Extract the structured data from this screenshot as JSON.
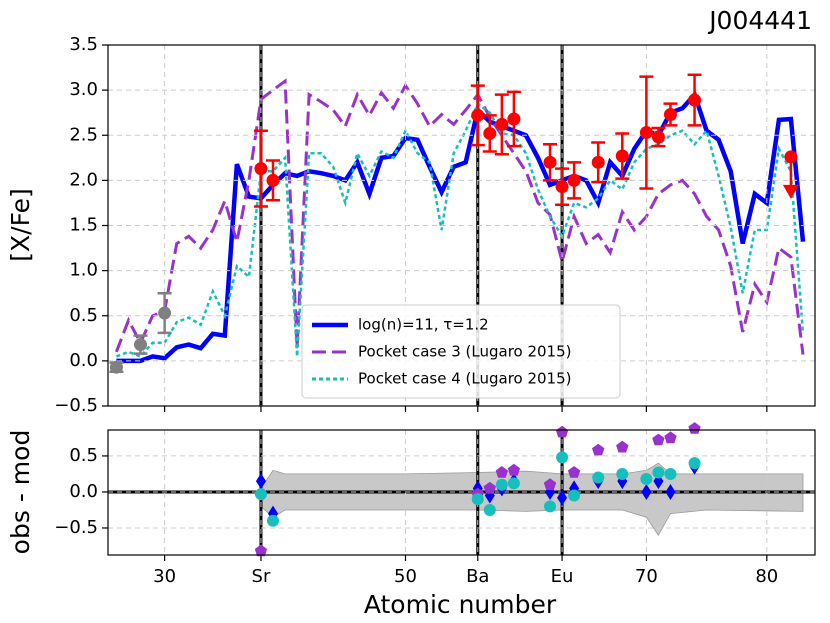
{
  "chart_data": [
    {
      "type": "line",
      "title": "J004441",
      "ylabel": "[X/Fe]",
      "x": [
        26,
        27,
        28,
        29,
        30,
        31,
        32,
        33,
        34,
        35,
        36,
        37,
        38,
        39,
        40,
        41,
        42,
        43,
        44,
        45,
        46,
        47,
        48,
        49,
        50,
        51,
        52,
        53,
        54,
        55,
        56,
        57,
        58,
        59,
        60,
        61,
        62,
        63,
        64,
        65,
        66,
        67,
        68,
        69,
        70,
        71,
        72,
        73,
        74,
        75,
        76,
        77,
        78,
        79,
        80,
        81,
        82,
        83
      ],
      "series": [
        {
          "name": "log(n)=11, τ=1.2",
          "color": "#0000ff",
          "linestyle": "solid",
          "values": [
            0.0,
            0.0,
            0.0,
            0.05,
            0.03,
            0.15,
            0.18,
            0.14,
            0.3,
            0.28,
            2.18,
            1.82,
            1.8,
            1.95,
            2.08,
            2.05,
            2.1,
            2.08,
            2.05,
            2.0,
            2.2,
            1.85,
            2.25,
            2.27,
            2.47,
            2.45,
            2.15,
            1.87,
            2.15,
            2.2,
            2.78,
            2.65,
            2.6,
            2.55,
            2.5,
            2.25,
            1.95,
            2.0,
            2.05,
            2.0,
            1.75,
            2.2,
            2.05,
            2.35,
            2.55,
            2.5,
            2.75,
            2.8,
            2.95,
            2.55,
            2.45,
            2.1,
            1.3,
            1.85,
            1.75,
            2.67,
            2.68,
            1.32
          ]
        },
        {
          "name": "Pocket case 3 (Lugaro 2015)",
          "color": "#9932cc",
          "linestyle": "dashed",
          "values": [
            0.1,
            0.45,
            0.2,
            0.5,
            0.55,
            1.3,
            1.38,
            1.25,
            1.45,
            1.77,
            1.32,
            2.0,
            2.9,
            3.0,
            3.1,
            0.15,
            2.95,
            2.87,
            2.78,
            2.6,
            2.95,
            2.72,
            2.97,
            2.8,
            3.05,
            2.85,
            2.6,
            2.73,
            2.62,
            2.78,
            2.95,
            2.7,
            2.5,
            2.3,
            2.1,
            1.75,
            1.62,
            1.1,
            1.6,
            1.3,
            1.4,
            1.2,
            1.65,
            1.45,
            1.6,
            1.85,
            1.95,
            2.0,
            1.85,
            1.6,
            1.45,
            1.05,
            0.32,
            0.85,
            0.65,
            1.25,
            1.15,
            0.07
          ]
        },
        {
          "name": "Pocket case 4 (Lugaro 2015)",
          "color": "#17bebe",
          "linestyle": "dotted",
          "values": [
            0.05,
            0.1,
            0.05,
            0.2,
            0.2,
            0.43,
            0.48,
            0.4,
            0.77,
            0.5,
            1.05,
            0.93,
            2.1,
            2.1,
            2.25,
            0.05,
            2.3,
            2.3,
            2.15,
            1.75,
            2.3,
            2.05,
            2.32,
            2.25,
            2.55,
            2.3,
            2.2,
            1.45,
            2.3,
            2.55,
            2.85,
            2.75,
            2.52,
            2.5,
            2.3,
            1.9,
            1.6,
            1.38,
            1.75,
            1.7,
            1.8,
            2.0,
            1.9,
            2.2,
            2.35,
            2.4,
            2.5,
            2.55,
            2.4,
            2.55,
            2.05,
            1.48,
            0.75,
            1.45,
            1.45,
            2.35,
            2.1,
            0.3
          ]
        }
      ],
      "observations": [
        {
          "color": "#ff0000",
          "x": [
            38,
            39,
            56,
            57,
            58,
            59,
            62,
            63,
            64,
            66,
            68,
            70,
            71,
            72,
            74
          ],
          "values": [
            2.13,
            2.0,
            2.72,
            2.52,
            2.62,
            2.68,
            2.2,
            1.93,
            2.0,
            2.2,
            2.27,
            2.53,
            2.48,
            2.73,
            2.89
          ],
          "errors": [
            0.42,
            0.22,
            0.33,
            0.2,
            0.33,
            0.3,
            0.2,
            0.2,
            0.2,
            0.22,
            0.25,
            0.62,
            0.1,
            0.12,
            0.28
          ]
        },
        {
          "color": "#808080",
          "x": [
            26,
            28,
            30
          ],
          "values": [
            -0.07,
            0.18,
            0.53
          ],
          "errors": [
            0.05,
            0.1,
            0.22
          ]
        }
      ],
      "upper_limits": {
        "color": "#ff0000",
        "x": [
          82
        ],
        "values": [
          2.26
        ]
      },
      "vlines": [
        38,
        56,
        63
      ],
      "xlim": [
        25.3,
        84
      ],
      "ylim": [
        -0.5,
        3.5
      ],
      "yticks": [
        {
          "value": -0.5,
          "label": "−0.5"
        },
        {
          "value": 0,
          "label": "0.0"
        },
        0.5,
        {
          "value": 1,
          "label": "1.0"
        },
        1.5,
        {
          "value": 2,
          "label": "2.0"
        },
        2.5,
        {
          "value": 3,
          "label": "3.0"
        },
        3.5
      ],
      "xticks": [
        30,
        {
          "value": 38,
          "label": "Sr"
        },
        50,
        {
          "value": 56,
          "label": "Ba"
        },
        {
          "value": 63,
          "label": "Eu"
        },
        70,
        80
      ],
      "grid": true,
      "legend": "lower center"
    },
    {
      "type": "scatter",
      "ylabel": "obs - mod",
      "xlabel": "Atomic number",
      "x": [
        38,
        39,
        56,
        57,
        58,
        59,
        62,
        63,
        64,
        66,
        68,
        70,
        71,
        72,
        74
      ],
      "series": [
        {
          "color": "#0000ff",
          "marker": "diamond",
          "values": [
            0.15,
            -0.3,
            0.05,
            -0.05,
            0.05,
            0.15,
            0.0,
            -0.08,
            0.05,
            0.15,
            0.15,
            0.0,
            0.15,
            0.0,
            0.35
          ]
        },
        {
          "color": "#9932cc",
          "marker": "pentagon",
          "values": [
            -0.82,
            null,
            -0.03,
            0.05,
            0.27,
            0.3,
            0.1,
            0.83,
            0.27,
            0.58,
            0.62,
            null,
            0.72,
            0.75,
            0.88
          ]
        },
        {
          "color": "#17bebe",
          "marker": "circle",
          "values": [
            -0.03,
            -0.4,
            -0.1,
            -0.25,
            0.1,
            0.12,
            -0.2,
            0.48,
            -0.05,
            0.2,
            0.25,
            0.18,
            0.27,
            0.25,
            0.4
          ]
        }
      ],
      "band": {
        "color": "#c8c8c8",
        "x": [
          38,
          39,
          40,
          50,
          56,
          60,
          63,
          68,
          70,
          71,
          72,
          75,
          83
        ],
        "upper": [
          0.05,
          0.3,
          0.25,
          0.25,
          0.27,
          0.29,
          0.25,
          0.25,
          0.3,
          0.4,
          0.25,
          0.25,
          0.25
        ],
        "lower": [
          -0.2,
          -0.35,
          -0.25,
          -0.25,
          -0.25,
          -0.27,
          -0.25,
          -0.25,
          -0.35,
          -0.6,
          -0.3,
          -0.25,
          -0.27
        ]
      },
      "hline": 0,
      "vlines": [
        38,
        56,
        63
      ],
      "xlim": [
        25.3,
        84
      ],
      "ylim": [
        -0.875,
        0.86
      ],
      "yticks": [
        {
          "value": -0.5,
          "label": "−0.5"
        },
        {
          "value": 0,
          "label": "0.0"
        },
        0.5
      ],
      "xticks": [
        30,
        {
          "value": 38,
          "label": "Sr"
        },
        50,
        {
          "value": 56,
          "label": "Ba"
        },
        {
          "value": 63,
          "label": "Eu"
        },
        70,
        80
      ],
      "grid": true
    }
  ]
}
